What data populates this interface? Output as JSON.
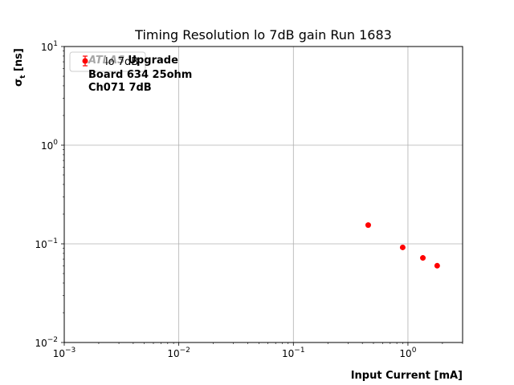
{
  "chart_data": {
    "type": "scatter",
    "title": "Timing Resolution lo 7dB gain Run 1683",
    "xlabel": "Input Current [mA]",
    "ylabel_main": "σ",
    "ylabel_sub": "t",
    "ylabel_unit": " [ns]",
    "xscale": "log",
    "yscale": "log",
    "xlim": [
      0.001,
      3.0
    ],
    "ylim": [
      0.01,
      10
    ],
    "grid": true,
    "x_ticks": [
      {
        "value": 0.001,
        "base": "10",
        "exp": "−3"
      },
      {
        "value": 0.01,
        "base": "10",
        "exp": "−2"
      },
      {
        "value": 0.1,
        "base": "10",
        "exp": "−1"
      },
      {
        "value": 1,
        "base": "10",
        "exp": "0"
      }
    ],
    "y_ticks": [
      {
        "value": 0.01,
        "base": "10",
        "exp": "−2"
      },
      {
        "value": 0.1,
        "base": "10",
        "exp": "−1"
      },
      {
        "value": 1,
        "base": "10",
        "exp": "0"
      },
      {
        "value": 10,
        "base": "10",
        "exp": "1"
      }
    ],
    "legend": {
      "placement": "upper-left",
      "entries": [
        {
          "label": "lo 7dB",
          "color": "#ff0000"
        }
      ]
    },
    "series": [
      {
        "name": "lo 7dB",
        "color": "#ff0000",
        "x": [
          0.45,
          0.9,
          1.35,
          1.8
        ],
        "y": [
          0.155,
          0.092,
          0.072,
          0.06
        ]
      }
    ],
    "annotations": {
      "atlas_label": "ATLAS",
      "line1_rest": "Upgrade",
      "line2": "Board 634 25ohm",
      "line3": "Ch071 7dB"
    }
  }
}
